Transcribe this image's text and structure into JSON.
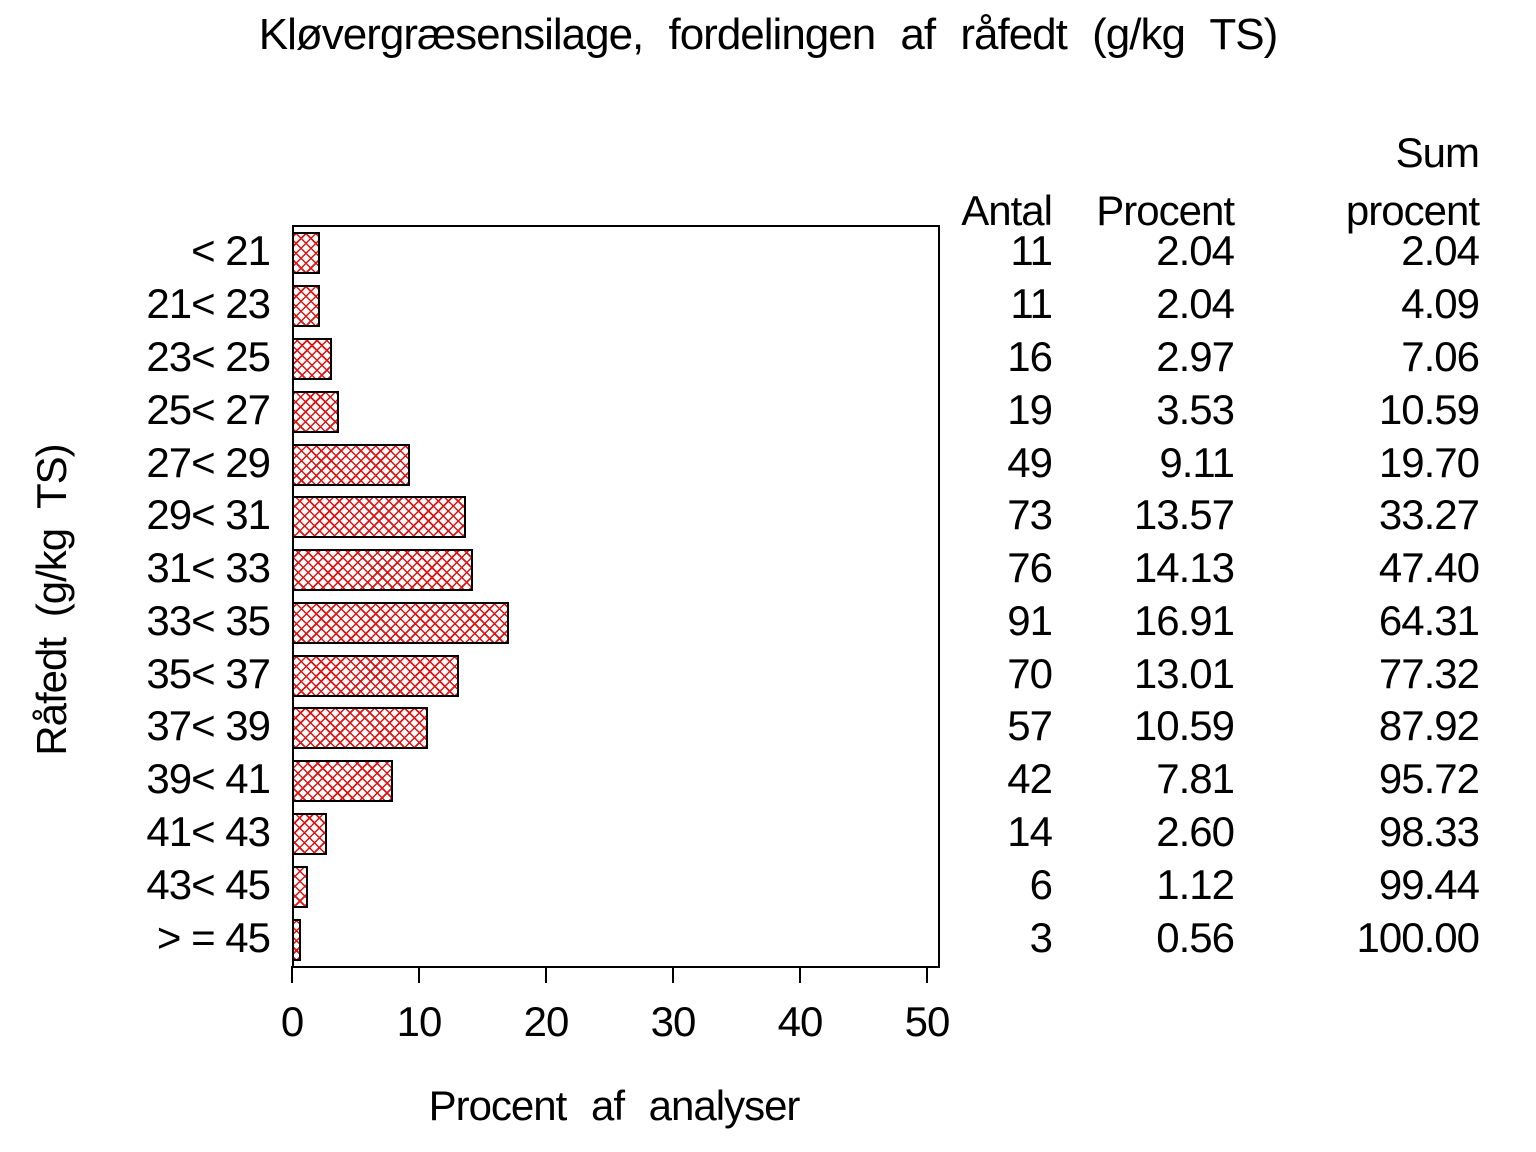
{
  "title": "Kløvergræsensilage, fordelingen af råfedt (g/kg TS)",
  "y_axis_label": "Råfedt (g/kg TS)",
  "x_axis_label": "Procent af analyser",
  "table_headers": {
    "antal": "Antal",
    "procent": "Procent",
    "sum_line1": "Sum",
    "sum_line2": "procent"
  },
  "chart_data": {
    "type": "bar",
    "orientation": "horizontal",
    "title": "Kløvergræsensilage, fordelingen af råfedt (g/kg TS)",
    "xlabel": "Procent af analyser",
    "ylabel": "Råfedt (g/kg TS)",
    "categories": [
      "< 21",
      "21< 23",
      "23< 25",
      "25< 27",
      "27< 29",
      "29< 31",
      "31< 33",
      "33< 35",
      "35< 37",
      "37< 39",
      "39< 41",
      "41< 43",
      "43< 45",
      "> = 45"
    ],
    "series": [
      {
        "name": "Antal",
        "values": [
          11,
          11,
          16,
          19,
          49,
          73,
          76,
          91,
          70,
          57,
          42,
          14,
          6,
          3
        ]
      },
      {
        "name": "Procent",
        "values": [
          2.04,
          2.04,
          2.97,
          3.53,
          9.11,
          13.57,
          14.13,
          16.91,
          13.01,
          10.59,
          7.81,
          2.6,
          1.12,
          0.56
        ]
      },
      {
        "name": "Sum procent",
        "values": [
          2.04,
          4.09,
          7.06,
          10.59,
          19.7,
          33.27,
          47.4,
          64.31,
          77.32,
          87.92,
          95.72,
          98.33,
          99.44,
          100.0
        ]
      }
    ],
    "bar_series": "Procent",
    "xlim": [
      0,
      50
    ],
    "xticks": [
      0,
      10,
      20,
      30,
      40,
      50
    ],
    "grid": false,
    "legend": "none",
    "bar_color": "#e01212",
    "bar_pattern": "crosshatch",
    "axis_color": "#000000"
  }
}
